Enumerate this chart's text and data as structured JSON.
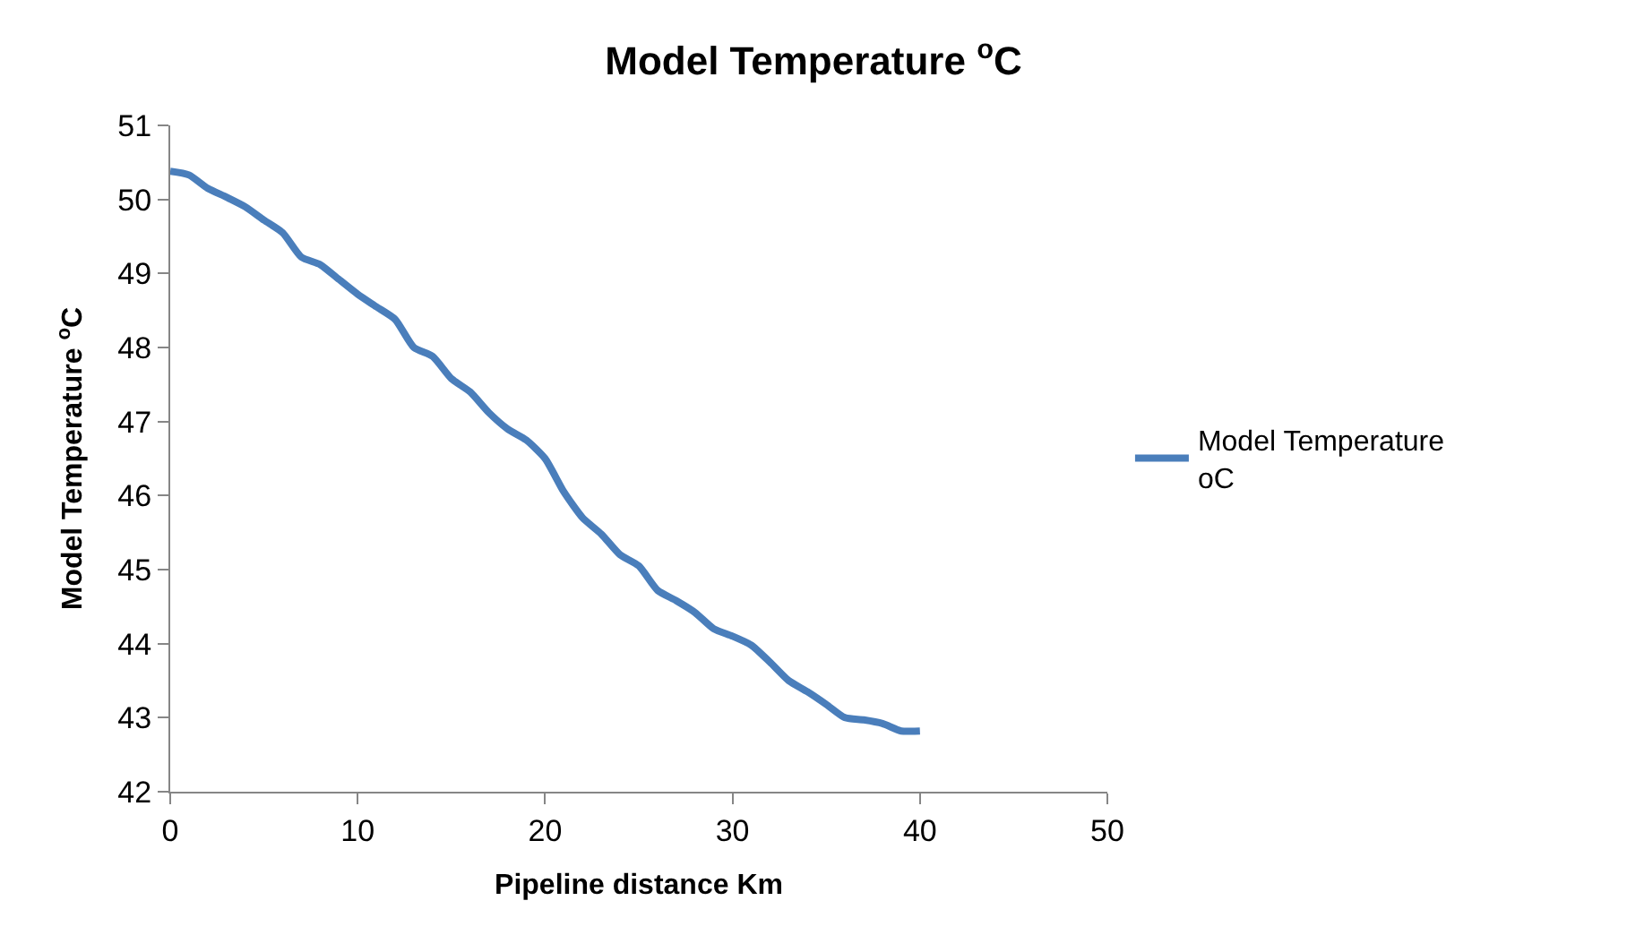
{
  "chart_data": {
    "type": "line",
    "title": "Model Temperature $^{o}$C",
    "xlabel": "Pipeline distance Km",
    "ylabel": "Model Temperature $^{o}$C",
    "x": [
      0,
      1,
      2,
      3,
      4,
      5,
      6,
      7,
      8,
      9,
      10,
      11,
      12,
      13,
      14,
      15,
      16,
      17,
      18,
      19,
      20,
      21,
      22,
      23,
      24,
      25,
      26,
      27,
      28,
      29,
      30,
      31,
      32,
      33,
      34,
      35,
      36,
      37,
      38,
      39,
      40
    ],
    "series": [
      {
        "name": "Model Temperature oC",
        "color": "#4a7ebb",
        "values": [
          50.38,
          50.33,
          50.15,
          50.03,
          49.9,
          49.72,
          49.55,
          49.22,
          49.12,
          48.92,
          48.72,
          48.55,
          48.38,
          48.0,
          47.88,
          47.58,
          47.4,
          47.12,
          46.9,
          46.75,
          46.5,
          46.05,
          45.7,
          45.48,
          45.2,
          45.05,
          44.72,
          44.58,
          44.42,
          44.2,
          44.1,
          43.98,
          43.75,
          43.5,
          43.35,
          43.18,
          43.0,
          42.97,
          42.92,
          42.82,
          42.82
        ]
      }
    ],
    "xlim": [
      0,
      50
    ],
    "xticks": [
      0,
      10,
      20,
      30,
      40,
      50
    ],
    "ylim": [
      42,
      51
    ],
    "yticks": [
      42,
      43,
      44,
      45,
      46,
      47,
      48,
      49,
      50,
      51
    ],
    "legend": "right",
    "marker": "none",
    "line_style": "solid"
  }
}
